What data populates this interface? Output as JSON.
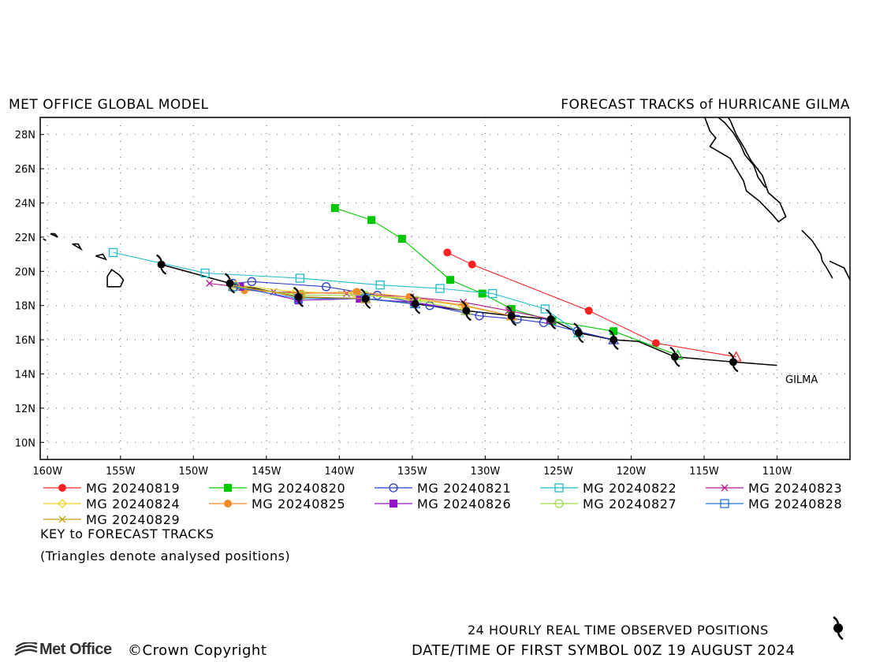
{
  "header": {
    "left_title": "MET OFFICE GLOBAL MODEL",
    "right_title": "FORECAST TRACKS of HURRICANE GILMA"
  },
  "map": {
    "lat_range": [
      9,
      29
    ],
    "lon_range": [
      -160.5,
      -105
    ],
    "lat_ticks": [
      "10N",
      "12N",
      "14N",
      "16N",
      "18N",
      "20N",
      "22N",
      "24N",
      "26N",
      "28N"
    ],
    "lon_ticks": [
      "160W",
      "155W",
      "150W",
      "145W",
      "140W",
      "135W",
      "130W",
      "125W",
      "120W",
      "115W",
      "110W"
    ],
    "storm_label": "GILMA",
    "land_color": "#000000",
    "grid": "dotted"
  },
  "legend": {
    "items": [
      {
        "label": "MG 20240819",
        "color": "#ff2222",
        "marker": "filled-circle"
      },
      {
        "label": "MG 20240820",
        "color": "#00c800",
        "marker": "filled-square"
      },
      {
        "label": "MG 20240821",
        "color": "#2a3cc8",
        "marker": "open-circle"
      },
      {
        "label": "MG 20240822",
        "color": "#1ebcc8",
        "marker": "open-square"
      },
      {
        "label": "MG 20240823",
        "color": "#b4148c",
        "marker": "x"
      },
      {
        "label": "MG 20240824",
        "color": "#e6d21e",
        "marker": "diamond"
      },
      {
        "label": "MG 20240825",
        "color": "#f08c28",
        "marker": "filled-circle"
      },
      {
        "label": "MG 20240826",
        "color": "#9614c8",
        "marker": "filled-square"
      },
      {
        "label": "MG 20240827",
        "color": "#a0dc46",
        "marker": "open-circle"
      },
      {
        "label": "MG 20240828",
        "color": "#1e78dc",
        "marker": "open-square"
      },
      {
        "label": "MG 20240829",
        "color": "#c8a014",
        "marker": "x"
      }
    ],
    "key_title": "KEY to FORECAST TRACKS",
    "key_note": "(Triangles denote analysed positions)"
  },
  "footer": {
    "logo_text": "Met Office",
    "copyright": "©Crown Copyright",
    "observed_note": "24 HOURLY REAL TIME OBSERVED POSITIONS",
    "date_note": "DATE/TIME OF FIRST SYMBOL 00Z 19 AUGUST 2024"
  },
  "chart_data": {
    "type": "map-tracks",
    "observed_track": [
      [
        -113,
        14.7
      ],
      [
        -117,
        15.0
      ],
      [
        -121.2,
        16.0
      ],
      [
        -123.6,
        16.4
      ],
      [
        -125.5,
        17.2
      ],
      [
        -128.2,
        17.4
      ],
      [
        -131.3,
        17.7
      ],
      [
        -134.8,
        18.1
      ],
      [
        -138.2,
        18.4
      ],
      [
        -142.8,
        18.5
      ],
      [
        -147.5,
        19.3
      ],
      [
        -152.2,
        20.4
      ]
    ],
    "observed_line": [
      [
        -110,
        14.5
      ],
      [
        -113,
        14.7
      ],
      [
        -117,
        15.0
      ],
      [
        -119.5,
        15.9
      ],
      [
        -121.2,
        16.0
      ],
      [
        -123.6,
        16.4
      ],
      [
        -125.5,
        17.2
      ],
      [
        -128.2,
        17.4
      ],
      [
        -131.3,
        17.7
      ],
      [
        -134.8,
        18.1
      ],
      [
        -138.2,
        18.4
      ],
      [
        -142.8,
        18.5
      ],
      [
        -147.5,
        19.3
      ],
      [
        -152.2,
        20.4
      ]
    ],
    "forecasts": [
      {
        "name": "MG 20240819",
        "points": [
          [
            -112.8,
            15.0
          ],
          [
            -118.3,
            15.8
          ],
          [
            -122.9,
            17.7
          ],
          [
            -130.9,
            20.4
          ],
          [
            -132.6,
            21.1
          ]
        ]
      },
      {
        "name": "MG 20240820",
        "points": [
          [
            -116.8,
            15.1
          ],
          [
            -121.2,
            16.5
          ],
          [
            -125.4,
            17.1
          ],
          [
            -128.2,
            17.8
          ],
          [
            -130.2,
            18.7
          ],
          [
            -132.4,
            19.5
          ],
          [
            -135.7,
            21.9
          ],
          [
            -137.8,
            23.0
          ],
          [
            -140.3,
            23.7
          ]
        ]
      },
      {
        "name": "MG 20240821",
        "points": [
          [
            -121.2,
            16.0
          ],
          [
            -123.7,
            16.5
          ],
          [
            -126,
            17.0
          ],
          [
            -127.8,
            17.2
          ],
          [
            -130.4,
            17.4
          ],
          [
            -133.8,
            18.0
          ],
          [
            -137.4,
            18.6
          ],
          [
            -140.9,
            19.1
          ],
          [
            -146,
            19.4
          ],
          [
            -147.3,
            19.3
          ]
        ]
      },
      {
        "name": "MG 20240822",
        "points": [
          [
            -123.6,
            16.4
          ],
          [
            -125.9,
            17.8
          ],
          [
            -129.5,
            18.7
          ],
          [
            -133.1,
            19.0
          ],
          [
            -137.2,
            19.2
          ],
          [
            -142.7,
            19.6
          ],
          [
            -149.2,
            19.9
          ],
          [
            -155.5,
            21.1
          ]
        ]
      },
      {
        "name": "MG 20240823",
        "points": [
          [
            -125.5,
            17.2
          ],
          [
            -128.4,
            17.7
          ],
          [
            -131.5,
            18.2
          ],
          [
            -135.1,
            18.5
          ],
          [
            -139.5,
            18.7
          ],
          [
            -144.5,
            18.8
          ],
          [
            -148.9,
            19.3
          ]
        ]
      },
      {
        "name": "MG 20240824",
        "points": [
          [
            -128.2,
            17.4
          ],
          [
            -131.6,
            18.0
          ],
          [
            -135.2,
            18.4
          ],
          [
            -139,
            18.7
          ],
          [
            -143,
            18.8
          ],
          [
            -147.1,
            19.2
          ]
        ]
      },
      {
        "name": "MG 20240825",
        "points": [
          [
            -128.2,
            17.4
          ],
          [
            -131.4,
            18.0
          ],
          [
            -135.2,
            18.5
          ],
          [
            -138.8,
            18.8
          ],
          [
            -142.6,
            18.7
          ],
          [
            -146.5,
            18.9
          ]
        ]
      },
      {
        "name": "MG 20240826",
        "points": [
          [
            -131.3,
            17.7
          ],
          [
            -134.9,
            18.2
          ],
          [
            -138.6,
            18.4
          ],
          [
            -142.8,
            18.3
          ],
          [
            -146.8,
            19.1
          ]
        ]
      },
      {
        "name": "MG 20240827",
        "points": [
          [
            -131.3,
            17.7
          ],
          [
            -134.7,
            18.3
          ],
          [
            -138.2,
            18.6
          ],
          [
            -142.6,
            18.6
          ],
          [
            -147.1,
            19.1
          ]
        ]
      },
      {
        "name": "MG 20240828",
        "points": [
          [
            -134.8,
            18.1
          ],
          [
            -138.2,
            18.4
          ],
          [
            -142.8,
            18.4
          ],
          [
            -147.3,
            19.1
          ]
        ]
      },
      {
        "name": "MG 20240829",
        "points": [
          [
            -138.2,
            18.4
          ],
          [
            -142.6,
            18.5
          ],
          [
            -147.4,
            19.2
          ]
        ]
      }
    ]
  }
}
